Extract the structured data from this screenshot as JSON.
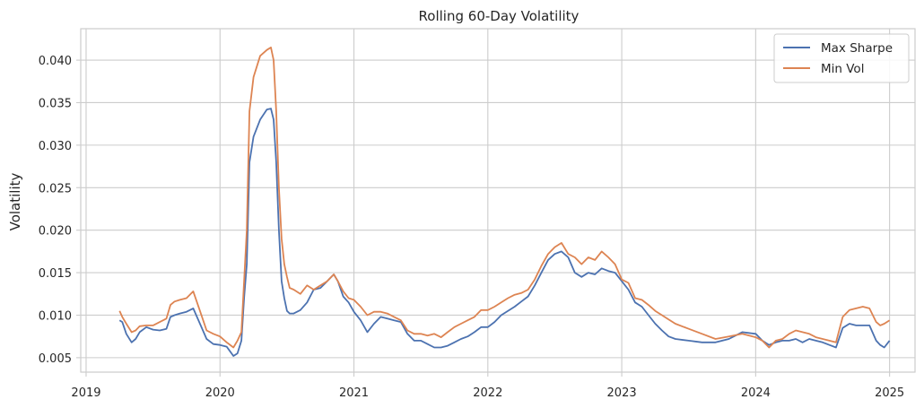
{
  "chart_data": {
    "type": "line",
    "title": "Rolling 60-Day Volatility",
    "xlabel": "",
    "ylabel": "Volatility",
    "xlim": [
      2018.96,
      2025.19
    ],
    "ylim": [
      0.0033,
      0.0437
    ],
    "grid": true,
    "legend_position": "top-right",
    "x_ticks": [
      2019,
      2020,
      2021,
      2022,
      2023,
      2024,
      2025
    ],
    "x_tick_labels": [
      "2019",
      "2020",
      "2021",
      "2022",
      "2023",
      "2024",
      "2025"
    ],
    "y_ticks": [
      0.005,
      0.01,
      0.015,
      0.02,
      0.025,
      0.03,
      0.035,
      0.04
    ],
    "y_tick_labels": [
      "0.005",
      "0.010",
      "0.015",
      "0.020",
      "0.025",
      "0.030",
      "0.035",
      "0.040"
    ],
    "series": [
      {
        "name": "Max Sharpe",
        "color": "#4c72b0",
        "x": [
          2019.25,
          2019.27,
          2019.3,
          2019.34,
          2019.37,
          2019.4,
          2019.45,
          2019.5,
          2019.55,
          2019.6,
          2019.63,
          2019.66,
          2019.7,
          2019.75,
          2019.8,
          2019.85,
          2019.9,
          2019.95,
          2020.0,
          2020.05,
          2020.1,
          2020.13,
          2020.16,
          2020.18,
          2020.2,
          2020.22,
          2020.25,
          2020.3,
          2020.35,
          2020.38,
          2020.4,
          2020.42,
          2020.44,
          2020.46,
          2020.48,
          2020.5,
          2020.52,
          2020.55,
          2020.6,
          2020.65,
          2020.7,
          2020.75,
          2020.8,
          2020.85,
          2020.88,
          2020.92,
          2020.96,
          2021.0,
          2021.05,
          2021.1,
          2021.15,
          2021.2,
          2021.25,
          2021.3,
          2021.35,
          2021.4,
          2021.45,
          2021.5,
          2021.55,
          2021.6,
          2021.65,
          2021.7,
          2021.75,
          2021.8,
          2021.85,
          2021.9,
          2021.95,
          2022.0,
          2022.05,
          2022.1,
          2022.15,
          2022.2,
          2022.25,
          2022.3,
          2022.35,
          2022.4,
          2022.45,
          2022.5,
          2022.55,
          2022.6,
          2022.65,
          2022.7,
          2022.75,
          2022.8,
          2022.85,
          2022.9,
          2022.95,
          2023.0,
          2023.05,
          2023.1,
          2023.15,
          2023.2,
          2023.25,
          2023.3,
          2023.35,
          2023.4,
          2023.5,
          2023.6,
          2023.7,
          2023.8,
          2023.9,
          2024.0,
          2024.05,
          2024.1,
          2024.15,
          2024.2,
          2024.25,
          2024.3,
          2024.35,
          2024.4,
          2024.45,
          2024.5,
          2024.55,
          2024.6,
          2024.65,
          2024.7,
          2024.75,
          2024.8,
          2024.85,
          2024.9,
          2024.93,
          2024.96,
          2025.0
        ],
        "values": [
          0.0094,
          0.0092,
          0.0078,
          0.0068,
          0.0072,
          0.008,
          0.0086,
          0.0083,
          0.0082,
          0.0084,
          0.0098,
          0.01,
          0.0102,
          0.0104,
          0.0108,
          0.009,
          0.0072,
          0.0066,
          0.0065,
          0.0063,
          0.0052,
          0.0055,
          0.007,
          0.012,
          0.016,
          0.028,
          0.031,
          0.033,
          0.0342,
          0.0343,
          0.033,
          0.028,
          0.02,
          0.014,
          0.012,
          0.0105,
          0.0102,
          0.0102,
          0.0106,
          0.0115,
          0.013,
          0.0132,
          0.014,
          0.0148,
          0.014,
          0.0122,
          0.0115,
          0.0104,
          0.0094,
          0.008,
          0.009,
          0.0098,
          0.0096,
          0.0094,
          0.0092,
          0.0078,
          0.007,
          0.007,
          0.0066,
          0.0062,
          0.0062,
          0.0064,
          0.0068,
          0.0072,
          0.0075,
          0.008,
          0.0086,
          0.0086,
          0.0092,
          0.01,
          0.0105,
          0.011,
          0.0116,
          0.0122,
          0.0135,
          0.015,
          0.0165,
          0.0172,
          0.0175,
          0.0168,
          0.015,
          0.0145,
          0.015,
          0.0148,
          0.0155,
          0.0152,
          0.015,
          0.014,
          0.013,
          0.0115,
          0.011,
          0.01,
          0.009,
          0.0082,
          0.0075,
          0.0072,
          0.007,
          0.0068,
          0.0068,
          0.0072,
          0.008,
          0.0078,
          0.007,
          0.0065,
          0.0068,
          0.007,
          0.007,
          0.0072,
          0.0068,
          0.0072,
          0.007,
          0.0068,
          0.0065,
          0.0062,
          0.0085,
          0.009,
          0.0088,
          0.0088,
          0.0088,
          0.007,
          0.0065,
          0.0062,
          0.007
        ]
      },
      {
        "name": "Min Vol",
        "color": "#dd8452",
        "x": [
          2019.25,
          2019.27,
          2019.3,
          2019.34,
          2019.37,
          2019.4,
          2019.45,
          2019.5,
          2019.55,
          2019.6,
          2019.63,
          2019.66,
          2019.7,
          2019.75,
          2019.8,
          2019.85,
          2019.9,
          2019.95,
          2020.0,
          2020.05,
          2020.1,
          2020.13,
          2020.16,
          2020.18,
          2020.2,
          2020.22,
          2020.25,
          2020.3,
          2020.35,
          2020.38,
          2020.4,
          2020.42,
          2020.44,
          2020.46,
          2020.48,
          2020.5,
          2020.52,
          2020.55,
          2020.6,
          2020.65,
          2020.7,
          2020.75,
          2020.8,
          2020.85,
          2020.88,
          2020.92,
          2020.96,
          2021.0,
          2021.05,
          2021.1,
          2021.15,
          2021.2,
          2021.25,
          2021.3,
          2021.35,
          2021.4,
          2021.45,
          2021.5,
          2021.55,
          2021.6,
          2021.65,
          2021.7,
          2021.75,
          2021.8,
          2021.85,
          2021.9,
          2021.95,
          2022.0,
          2022.05,
          2022.1,
          2022.15,
          2022.2,
          2022.25,
          2022.3,
          2022.35,
          2022.4,
          2022.45,
          2022.5,
          2022.55,
          2022.6,
          2022.65,
          2022.7,
          2022.75,
          2022.8,
          2022.85,
          2022.9,
          2022.95,
          2023.0,
          2023.05,
          2023.1,
          2023.15,
          2023.2,
          2023.25,
          2023.3,
          2023.35,
          2023.4,
          2023.5,
          2023.6,
          2023.7,
          2023.8,
          2023.9,
          2024.0,
          2024.05,
          2024.1,
          2024.15,
          2024.2,
          2024.25,
          2024.3,
          2024.35,
          2024.4,
          2024.45,
          2024.5,
          2024.55,
          2024.6,
          2024.65,
          2024.7,
          2024.75,
          2024.8,
          2024.85,
          2024.9,
          2024.93,
          2024.96,
          2025.0
        ],
        "values": [
          0.0105,
          0.0098,
          0.009,
          0.008,
          0.0082,
          0.0087,
          0.0088,
          0.0088,
          0.0092,
          0.0096,
          0.0112,
          0.0116,
          0.0118,
          0.012,
          0.0128,
          0.0105,
          0.0082,
          0.0078,
          0.0075,
          0.0068,
          0.0062,
          0.007,
          0.008,
          0.014,
          0.02,
          0.034,
          0.038,
          0.0405,
          0.0412,
          0.0415,
          0.04,
          0.034,
          0.025,
          0.019,
          0.016,
          0.0145,
          0.0132,
          0.013,
          0.0125,
          0.0135,
          0.013,
          0.0135,
          0.014,
          0.0148,
          0.014,
          0.0128,
          0.012,
          0.0118,
          0.011,
          0.01,
          0.0104,
          0.0104,
          0.0102,
          0.0098,
          0.0094,
          0.0082,
          0.0078,
          0.0078,
          0.0076,
          0.0078,
          0.0074,
          0.008,
          0.0086,
          0.009,
          0.0094,
          0.0098,
          0.0106,
          0.0106,
          0.011,
          0.0115,
          0.012,
          0.0124,
          0.0126,
          0.013,
          0.0142,
          0.0158,
          0.0172,
          0.018,
          0.0185,
          0.0172,
          0.0168,
          0.016,
          0.0168,
          0.0165,
          0.0175,
          0.0168,
          0.016,
          0.0142,
          0.0138,
          0.012,
          0.0118,
          0.0112,
          0.0105,
          0.01,
          0.0095,
          0.009,
          0.0084,
          0.0078,
          0.0072,
          0.0075,
          0.0078,
          0.0074,
          0.007,
          0.0062,
          0.007,
          0.0072,
          0.0078,
          0.0082,
          0.008,
          0.0078,
          0.0074,
          0.0072,
          0.007,
          0.0068,
          0.0098,
          0.0106,
          0.0108,
          0.011,
          0.0108,
          0.0092,
          0.0088,
          0.009,
          0.0094
        ]
      }
    ]
  }
}
